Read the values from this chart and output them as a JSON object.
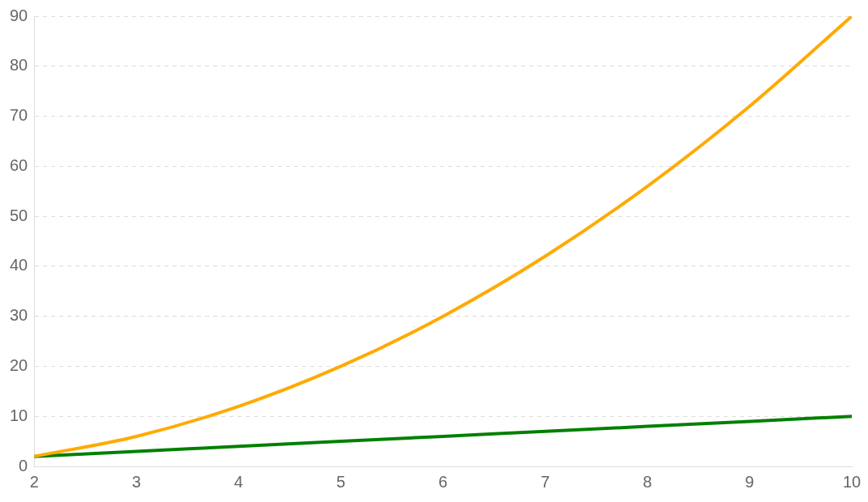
{
  "chart_data": {
    "type": "line",
    "x": [
      2,
      3,
      4,
      5,
      6,
      7,
      8,
      9,
      10
    ],
    "series": [
      {
        "color": "#ffaa00",
        "values": [
          2,
          6,
          12,
          20,
          30,
          42,
          56,
          72,
          90
        ]
      },
      {
        "color": "#008000",
        "values": [
          2,
          3,
          4,
          5,
          6,
          7,
          8,
          9,
          10
        ]
      }
    ],
    "xlim": [
      2,
      10
    ],
    "xticks": [
      2,
      3,
      4,
      5,
      6,
      7,
      8,
      9,
      10
    ],
    "ylim": [
      0,
      90
    ],
    "yticks": [
      0,
      10,
      20,
      30,
      40,
      50,
      60,
      70,
      80,
      90
    ],
    "grid": "y",
    "legend": false,
    "marker": "none",
    "line_style": "solid"
  }
}
